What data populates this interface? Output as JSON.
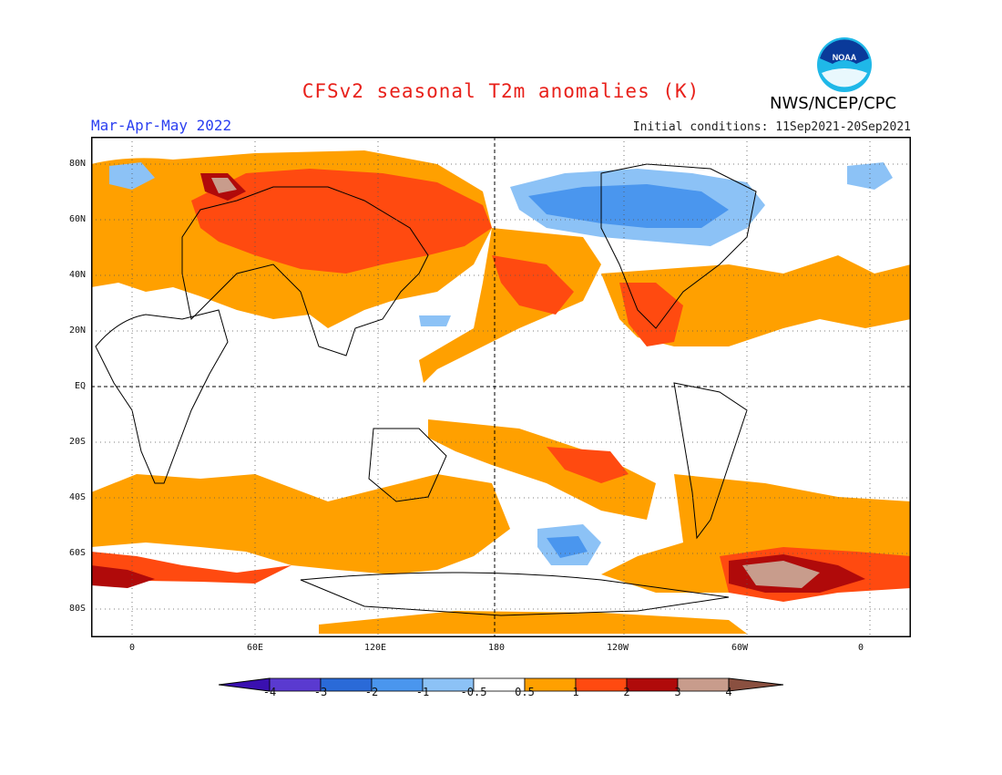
{
  "title": "CFSv2 seasonal T2m anomalies (K)",
  "season": "Mar-Apr-May 2022",
  "initial_conditions": "Initial conditions: 11Sep2021-20Sep2021",
  "agency": "NWS/NCEP/CPC",
  "logo_text": "NOAA",
  "lat_labels": [
    "80N",
    "60N",
    "40N",
    "20N",
    "EQ",
    "20S",
    "40S",
    "60S",
    "80S"
  ],
  "lon_labels": [
    "0",
    "60E",
    "120E",
    "180",
    "120W",
    "60W",
    "0"
  ],
  "colorbar": {
    "labels": [
      "-4",
      "-3",
      "-2",
      "-1",
      "-0.5",
      "0.5",
      "1",
      "2",
      "3",
      "4"
    ],
    "colors": [
      "#3a10b0",
      "#5a3ad0",
      "#2a6ad8",
      "#4a96ee",
      "#8cc2f6",
      "#ffffff",
      "#ffa000",
      "#ff4a10",
      "#b00a0a",
      "#c89c8c",
      "#8a5040"
    ]
  },
  "chart_data": {
    "type": "heatmap",
    "variable": "T2m anomalies (K)",
    "lat_range": [
      -90,
      90
    ],
    "lon_range": [
      -20,
      380
    ],
    "levels": [
      -4,
      -3,
      -2,
      -1,
      -0.5,
      0.5,
      1,
      2,
      3,
      4
    ]
  }
}
